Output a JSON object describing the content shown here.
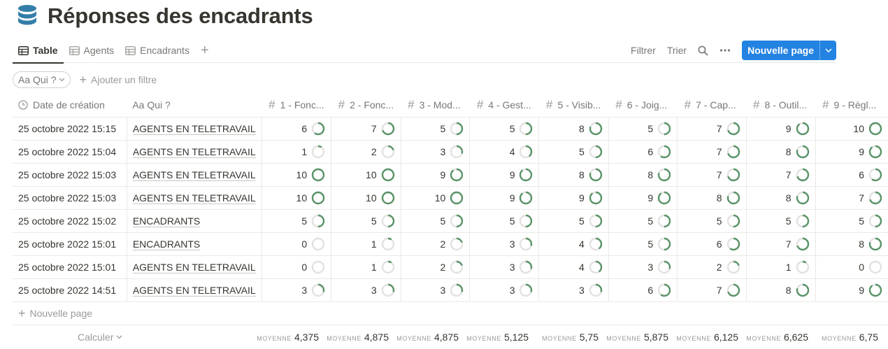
{
  "page": {
    "icon": "database-icon",
    "title": "Réponses des encadrants"
  },
  "views": {
    "tabs": [
      {
        "label": "Table",
        "active": true
      },
      {
        "label": "Agents",
        "active": false
      },
      {
        "label": "Encadrants",
        "active": false
      }
    ],
    "add_icon": "plus-icon"
  },
  "toolbar": {
    "filter_label": "Filtrer",
    "sort_label": "Trier",
    "search_icon": "search-icon",
    "more_icon": "more-icon",
    "new_page_label": "Nouvelle page"
  },
  "filters": {
    "chip_label": "Aa Qui ?",
    "add_filter_label": "Ajouter un filtre"
  },
  "table": {
    "headers": {
      "date": "Date de création",
      "who": "Aa Qui ?",
      "cols": [
        "1 - Fonc...",
        "2 - Fonc...",
        "3 - Mod...",
        "4 - Gest...",
        "5 - Visib...",
        "6 - Joig...",
        "7 - Cap...",
        "8 - Outil...",
        "9 - Règl..."
      ]
    },
    "ring_max": 10,
    "ring_color": "#5a9368",
    "ring_track_color": "#e3e2e0",
    "rows": [
      {
        "date": "25 octobre 2022 15:15",
        "who": "AGENTS EN TELETRAVAIL",
        "values": [
          6,
          7,
          5,
          5,
          8,
          5,
          7,
          9,
          10
        ]
      },
      {
        "date": "25 octobre 2022 15:04",
        "who": "AGENTS EN TELETRAVAIL",
        "values": [
          1,
          2,
          3,
          4,
          5,
          6,
          7,
          8,
          9
        ]
      },
      {
        "date": "25 octobre 2022 15:03",
        "who": "AGENTS EN TELETRAVAIL",
        "values": [
          10,
          10,
          9,
          9,
          8,
          8,
          7,
          7,
          6
        ]
      },
      {
        "date": "25 octobre 2022 15:03",
        "who": "AGENTS EN TELETRAVAIL",
        "values": [
          10,
          10,
          10,
          9,
          9,
          9,
          8,
          8,
          7
        ]
      },
      {
        "date": "25 octobre 2022 15:02",
        "who": "ENCADRANTS",
        "values": [
          5,
          5,
          5,
          5,
          5,
          5,
          5,
          5,
          5
        ]
      },
      {
        "date": "25 octobre 2022 15:01",
        "who": "ENCADRANTS",
        "values": [
          0,
          1,
          2,
          3,
          4,
          5,
          6,
          7,
          8
        ]
      },
      {
        "date": "25 octobre 2022 15:01",
        "who": "AGENTS EN TELETRAVAIL",
        "values": [
          0,
          1,
          2,
          3,
          4,
          3,
          2,
          1,
          0
        ]
      },
      {
        "date": "25 octobre 2022 14:51",
        "who": "AGENTS EN TELETRAVAIL",
        "values": [
          3,
          3,
          3,
          3,
          3,
          6,
          7,
          8,
          9
        ]
      }
    ],
    "new_row_label": "Nouvelle page"
  },
  "footer": {
    "calc_label": "Calculer",
    "avg_label": "MOYENNE",
    "averages": [
      "4,375",
      "4,875",
      "4,875",
      "5,125",
      "5,75",
      "5,875",
      "6,125",
      "6,625",
      "6,75"
    ]
  }
}
